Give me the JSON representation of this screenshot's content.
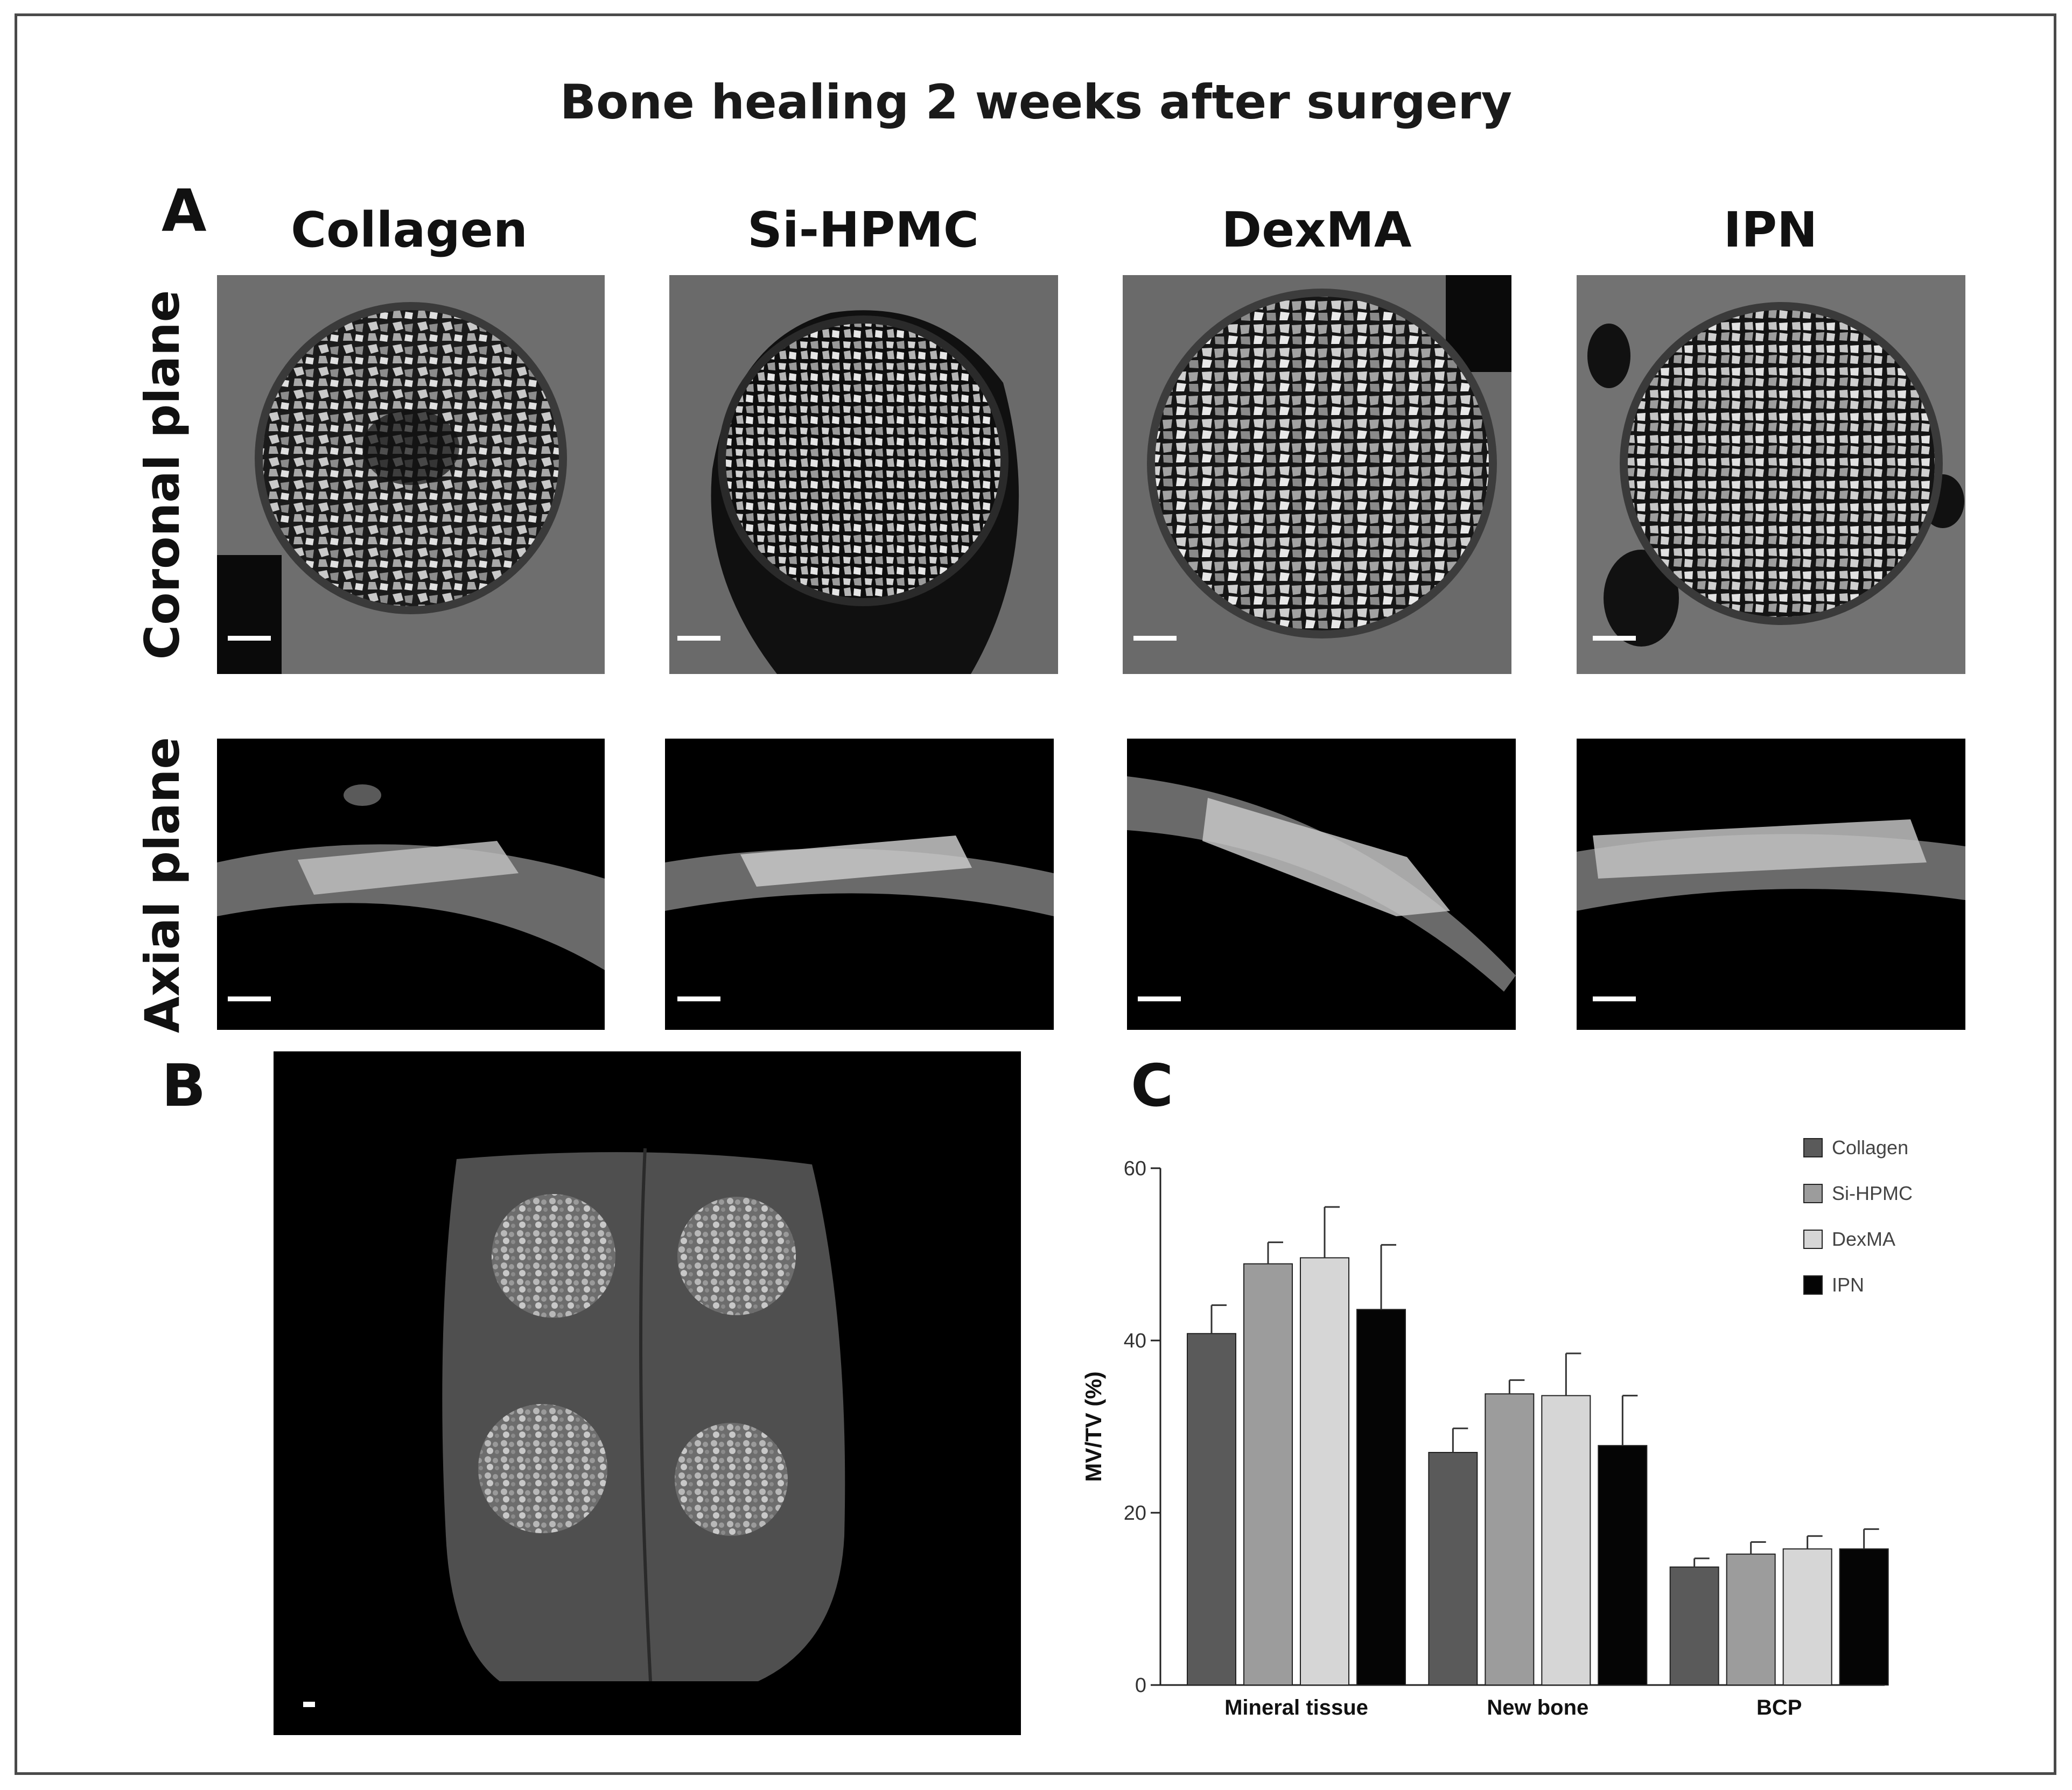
{
  "figure": {
    "title": "Bone healing 2 weeks after surgery",
    "panels": {
      "a": "A",
      "b": "B",
      "c": "C"
    },
    "columns": [
      "Collagen",
      "Si-HPMC",
      "DexMA",
      "IPN"
    ],
    "rows": [
      "Coronal plane",
      "Axial plane"
    ]
  },
  "colors": {
    "collagen": "#5a5a5a",
    "si_hpmc": "#9c9c9c",
    "dexma": "#d6d6d6",
    "ipn": "#050505"
  },
  "chart_data": {
    "type": "bar",
    "title": "",
    "xlabel": "",
    "ylabel": "MV/TV (%)",
    "ylim": [
      0,
      60
    ],
    "yticks": [
      0,
      20,
      40,
      60
    ],
    "categories": [
      "Mineral tissue",
      "New bone",
      "BCP"
    ],
    "legend_position": "top-right",
    "series": [
      {
        "name": "Collagen",
        "values": [
          40.8,
          27.0,
          13.7
        ],
        "errors": [
          3.3,
          2.8,
          1.0
        ]
      },
      {
        "name": "Si-HPMC",
        "values": [
          48.9,
          33.8,
          15.2
        ],
        "errors": [
          2.5,
          1.6,
          1.4
        ]
      },
      {
        "name": "DexMA",
        "values": [
          49.6,
          33.6,
          15.8
        ],
        "errors": [
          5.9,
          4.9,
          1.5
        ]
      },
      {
        "name": "IPN",
        "values": [
          43.6,
          27.8,
          15.8
        ],
        "errors": [
          7.5,
          5.8,
          2.3
        ]
      }
    ],
    "grid": false
  }
}
